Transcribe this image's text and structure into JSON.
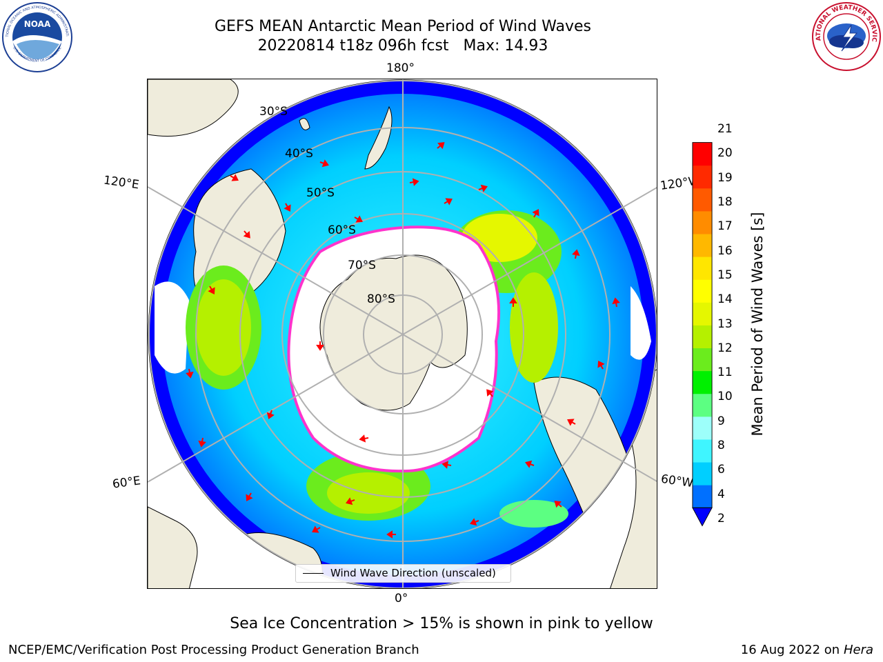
{
  "header": {
    "title_line1": "GEFS MEAN Antarctic Mean Period of Wind Waves",
    "title_line2_left": "20220814 t18z 096h fcst",
    "title_line2_right": "Max: 14.93"
  },
  "logos": {
    "noaa_text": "NOAA",
    "noaa_ring_top": "NATIONAL OCEANIC AND ATMOSPHERIC ADMINISTRATION",
    "noaa_ring_bottom": "U.S. DEPARTMENT OF COMMERCE",
    "nws_ring": "NATIONAL WEATHER SERVICE"
  },
  "map": {
    "longitude_labels": {
      "top": "180°",
      "bottom": "0°",
      "left_upper": "120°E",
      "left_lower": "60°E",
      "right_upper": "120°W",
      "right_lower": "60°W"
    },
    "latitude_labels": [
      "30°S",
      "40°S",
      "50°S",
      "60°S",
      "70°S",
      "80°S"
    ]
  },
  "colorbar": {
    "label": "Mean Period of Wind Waves [s]",
    "ticks": [
      "2",
      "4",
      "6",
      "8",
      "9",
      "10",
      "11",
      "12",
      "13",
      "14",
      "15",
      "16",
      "17",
      "18",
      "19",
      "20",
      "21"
    ],
    "colors": [
      "#0000ff",
      "#0070ff",
      "#00cfff",
      "#3ff5ff",
      "#9dfffa",
      "#5cff82",
      "#00f000",
      "#6bec1d",
      "#b5f000",
      "#e5f700",
      "#ffff00",
      "#ffe600",
      "#ffb800",
      "#ff8c00",
      "#ff5a00",
      "#ff2a00",
      "#ff0000"
    ]
  },
  "legend": {
    "text": "Wind Wave Direction (unscaled)"
  },
  "caption": "Sea Ice Concentration > 15% is shown in pink to yellow",
  "footer": {
    "left": "NCEP/EMC/Verification Post Processing Product Generation Branch",
    "right_date": "16 Aug 2022 on",
    "right_host": "Hera"
  }
}
